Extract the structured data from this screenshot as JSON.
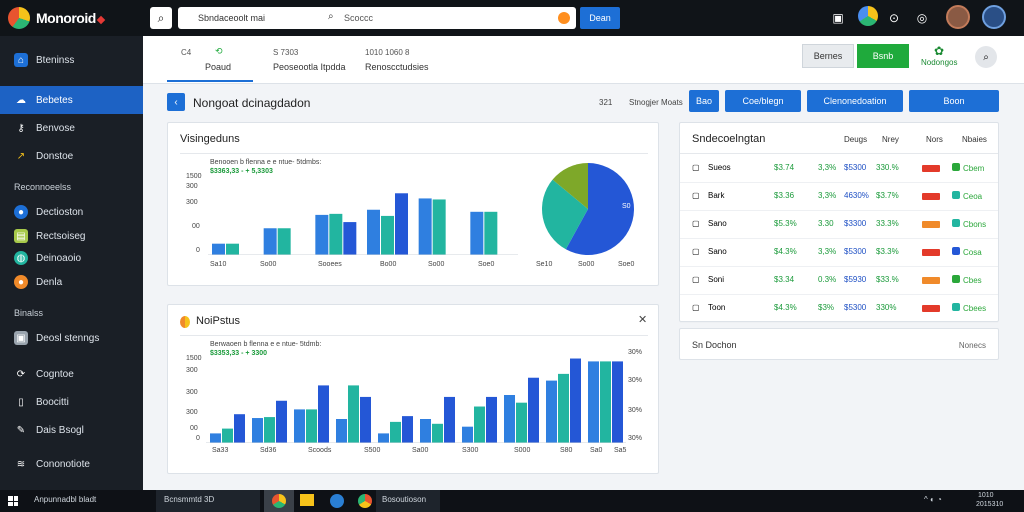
{
  "topbar": {
    "brand": "Monoroid",
    "search_text": "Sbndaceoolt mai",
    "search_placeholder": "Scoccc",
    "search_button": "Dean"
  },
  "sidebar": {
    "items": [
      {
        "label": "Bteninss",
        "icon": "home-icon"
      },
      {
        "label": "Bebetes",
        "icon": "cloud-icon"
      },
      {
        "label": "Benvose",
        "icon": "key-icon"
      },
      {
        "label": "Donstoe",
        "icon": "chart-icon"
      }
    ],
    "section1": "Reconnoeelss",
    "items2": [
      {
        "label": "Dectioston",
        "icon": "user-icon"
      },
      {
        "label": "Rectsoiseg",
        "icon": "doc-icon"
      },
      {
        "label": "Deinoaoio",
        "icon": "globe-icon"
      },
      {
        "label": "Denla",
        "icon": "fire-icon"
      }
    ],
    "section2": "Binalss",
    "items3": [
      {
        "label": "Deosl stenngs",
        "icon": "image-icon"
      }
    ],
    "items4": [
      {
        "label": "Cogntoe",
        "icon": "refresh-icon"
      },
      {
        "label": "Boocitti",
        "icon": "file-icon"
      },
      {
        "label": "Dais Bsogl",
        "icon": "pencil-icon"
      },
      {
        "label": "Cononotiote",
        "icon": "stack-icon"
      }
    ]
  },
  "tabs": [
    {
      "label": "Poaud",
      "sub": "C4"
    },
    {
      "label": "Peoseootla Itpdda",
      "sub": "S 7303"
    },
    {
      "label": "Renoscctudsies",
      "sub": "1010  1060 8"
    }
  ],
  "header_buttons": {
    "grey": "Bernes",
    "green": "Bsnb",
    "link": "Nodongos"
  },
  "toolbar": {
    "title": "Nongoat dcinagdadon",
    "num": "321",
    "small": "Stnogjer Moats",
    "btn1": "Bao",
    "btn2": "Coe/blegn",
    "btn3": "Clenonedoation",
    "btn4": "Boon"
  },
  "card1": {
    "title": "Visingeduns",
    "legend": "Benooen b flenna e e ntue- 5tdmbs:",
    "legend_values": "$3363,33 - + 5,3303",
    "y_ticks": [
      "1500",
      "300",
      "300",
      "00",
      "0"
    ],
    "x_ticks": [
      "Sa10",
      "So00",
      "Sooees",
      "Bo00",
      "So00",
      "Soe0"
    ],
    "pie_x_ticks": [
      "Se10",
      "So00",
      "Soe0"
    ],
    "pie_label": "S0"
  },
  "chart_data": [
    {
      "type": "bar",
      "categories": [
        "Sa10",
        "So00",
        "Sooees",
        "Bo00",
        "So00",
        "Soe0"
      ],
      "series": [
        {
          "values": [
            55,
            130,
            195,
            220,
            275,
            210
          ]
        },
        {
          "values": [
            55,
            130,
            200,
            190,
            270,
            210
          ]
        },
        {
          "values": [
            null,
            null,
            160,
            300,
            null,
            null
          ]
        }
      ],
      "ylim": [
        0,
        350
      ]
    },
    {
      "type": "pie",
      "slices": [
        {
          "value": 58,
          "color": "#2457d6"
        },
        {
          "value": 28,
          "color": "#22b5a0"
        },
        {
          "value": 14,
          "color": "#7ea829"
        }
      ]
    },
    {
      "type": "bar",
      "categories": [
        "Sa33",
        "Sd36",
        "Scoods",
        "S500",
        "Sa00",
        "S300",
        "S000",
        "S80",
        "Sa0",
        "Sa5"
      ],
      "series": [
        {
          "values": [
            10,
            26,
            35,
            25,
            10,
            25,
            17,
            50,
            65,
            85
          ]
        },
        {
          "values": [
            15,
            27,
            35,
            60,
            22,
            20,
            38,
            42,
            72,
            85
          ]
        },
        {
          "values": [
            30,
            44,
            60,
            48,
            28,
            48,
            48,
            68,
            88,
            85
          ]
        }
      ],
      "y2_ticks": [
        "30%",
        "30%",
        "30%",
        "30%"
      ]
    }
  ],
  "card2": {
    "title": "NoiPstus",
    "legend": "Berwaoen b flenna e e ntue- 5tdmb:",
    "legend_values": "$3353,33 - + 3300",
    "y_ticks": [
      "1500",
      "300",
      "300",
      "300",
      "00",
      "0"
    ],
    "x_ticks": [
      "Sa33",
      "Sd36",
      "Scoods",
      "S500",
      "Sa00",
      "S300",
      "S000",
      "S80",
      "Sa0",
      "Sa5"
    ],
    "y2_ticks": [
      "30%",
      "30%",
      "30%",
      "30%"
    ]
  },
  "table": {
    "title": "Sndecoelngtan",
    "headers": [
      "Deugs",
      "Nrey",
      "Nors",
      "Nbaies"
    ],
    "rows": [
      {
        "icon": "square-icon",
        "name": "Sueos",
        "c1": "$3.74",
        "c2": "3,3%",
        "c3": "$5300",
        "c4": "330.%",
        "tag": "#e33a2a",
        "dot": "#2aa73a",
        "note": "Cbem"
      },
      {
        "icon": "square-icon",
        "name": "Bark",
        "c1": "$3.36",
        "c2": "3,3%",
        "c3": "4630%",
        "c4": "$3.7%",
        "tag": "#e33a2a",
        "dot": "#22b5a0",
        "note": "Ceoa"
      },
      {
        "icon": "bell-icon",
        "name": "Sano",
        "c1": "$5.3%",
        "c2": "3.30",
        "c3": "$3300",
        "c4": "33.3%",
        "tag": "#f08a2a",
        "dot": "#22b5a0",
        "note": "Cbons"
      },
      {
        "icon": "drop-icon",
        "name": "Sano",
        "c1": "$4.3%",
        "c2": "3,3%",
        "c3": "$5300",
        "c4": "$3.3%",
        "tag": "#e33a2a",
        "dot": "#2457d6",
        "note": "Cosa"
      },
      {
        "icon": "square-icon",
        "name": "Soni",
        "c1": "$3.34",
        "c2": "0.3%",
        "c3": "$5930",
        "c4": "$33.%",
        "tag": "#f08a2a",
        "dot": "#2aa73a",
        "note": "Cbes"
      },
      {
        "icon": "z-icon",
        "name": "Toon",
        "c1": "$4.3%",
        "c2": "$3%",
        "c3": "$5300",
        "c4": "330%",
        "tag": "#e33a2a",
        "dot": "#22b5a0",
        "note": "Cbees"
      }
    ],
    "footer_left": "Sn Dochon",
    "footer_right": "Nonecs"
  },
  "taskbar": {
    "start_text": "Anpunnadbl bladt",
    "search_text": "Bcnsmmtd  3D",
    "app_text": "Bosoutioson",
    "time": "1010",
    "date": "2015310"
  }
}
